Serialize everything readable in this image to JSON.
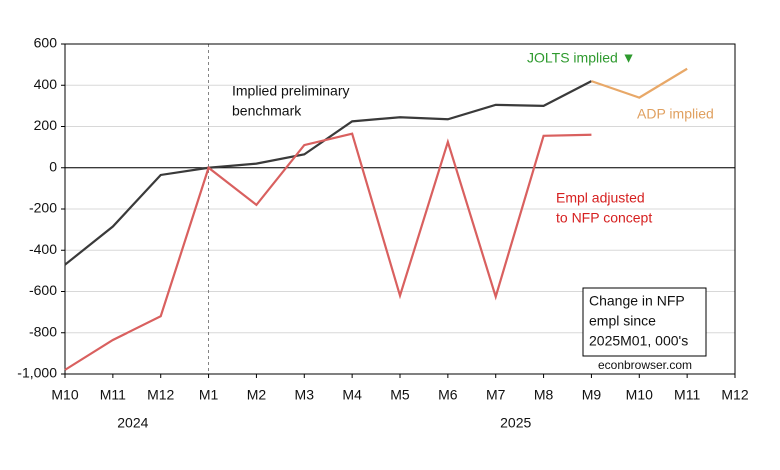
{
  "chart_data": {
    "type": "line",
    "categories": [
      "M10",
      "M11",
      "M12",
      "M1",
      "M2",
      "M3",
      "M4",
      "M5",
      "M6",
      "M7",
      "M8",
      "M9",
      "M10",
      "M11",
      "M12"
    ],
    "years": [
      "2024",
      "2025"
    ],
    "series": [
      {
        "name": "Implied preliminary benchmark",
        "color": "#3a3a3a",
        "values": [
          -470,
          -285,
          -35,
          0,
          20,
          65,
          225,
          245,
          235,
          305,
          300,
          420,
          null,
          null,
          null
        ]
      },
      {
        "name": "ADP implied",
        "color": "#e8a868",
        "values": [
          null,
          null,
          null,
          null,
          null,
          null,
          null,
          null,
          null,
          null,
          null,
          420,
          340,
          480,
          null
        ]
      },
      {
        "name": "Empl adjusted to NFP concept",
        "color": "#d9605f",
        "values": [
          -980,
          -835,
          -720,
          0,
          -180,
          110,
          165,
          -620,
          125,
          -625,
          155,
          160,
          null,
          null,
          null
        ]
      }
    ],
    "annotations": [
      {
        "lines": [
          "Implied preliminary",
          "benchmark"
        ],
        "color": "#111111"
      },
      {
        "lines": [
          "ADP implied"
        ],
        "color": "#e0a060"
      },
      {
        "lines": [
          "Empl adjusted",
          "to NFP concept"
        ],
        "color": "#d62020"
      },
      {
        "lines": [
          "JOLTS implied ▼"
        ],
        "color": "#2e9a2e"
      }
    ],
    "note": [
      "Change in NFP",
      "empl since",
      "2025M01, 000's"
    ],
    "source": "econbrowser.com",
    "ylim": [
      -1000,
      600
    ],
    "yticks": [
      600,
      400,
      200,
      0,
      -200,
      -400,
      -600,
      -800,
      {
        "value": -1000,
        "label": "-1,000"
      }
    ],
    "grid": true
  }
}
